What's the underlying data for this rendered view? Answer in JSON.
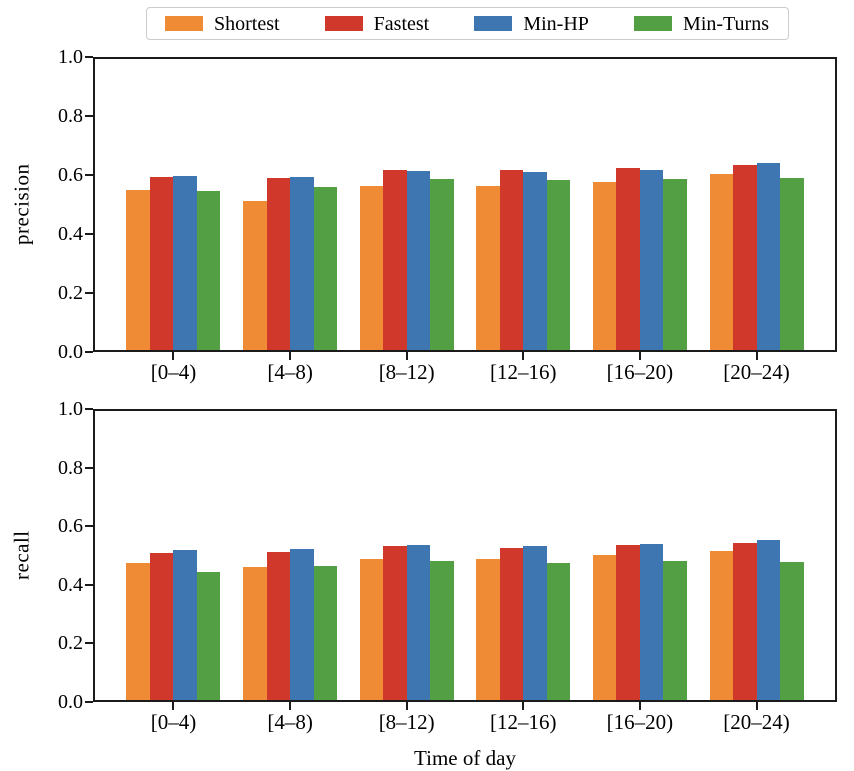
{
  "figure": {
    "xlabel": "Time of day",
    "background": "#ffffff",
    "spine_color": "#1b1b1b",
    "text_color": "#000000",
    "legend_border_color": "#cccccc"
  },
  "chart_data": [
    {
      "type": "bar",
      "title": "",
      "ylabel": "precision",
      "xlabel": "",
      "grid": false,
      "legend_position": "above top panel, centered, horizontal",
      "ylim": [
        0.0,
        1.0
      ],
      "yticks": [
        "0.0",
        "0.2",
        "0.4",
        "0.6",
        "0.8",
        "1.0"
      ],
      "categories": [
        "[0–4)",
        "[4–8)",
        "[8–12)",
        "[12–16)",
        "[16–20)",
        "[20–24)"
      ],
      "series": [
        {
          "name": "Shortest",
          "color": "#ef8a35",
          "values": [
            0.545,
            0.51,
            0.56,
            0.56,
            0.575,
            0.6
          ]
        },
        {
          "name": "Fastest",
          "color": "#d1382c",
          "values": [
            0.59,
            0.588,
            0.615,
            0.614,
            0.62,
            0.632
          ]
        },
        {
          "name": "Min-HP",
          "color": "#3d76b1",
          "values": [
            0.593,
            0.592,
            0.61,
            0.609,
            0.615,
            0.637
          ]
        },
        {
          "name": "Min-Turns",
          "color": "#52a043",
          "values": [
            0.542,
            0.556,
            0.585,
            0.58,
            0.582,
            0.586
          ]
        }
      ]
    },
    {
      "type": "bar",
      "title": "",
      "ylabel": "recall",
      "xlabel": "Time of day",
      "grid": false,
      "ylim": [
        0.0,
        1.0
      ],
      "yticks": [
        "0.0",
        "0.2",
        "0.4",
        "0.6",
        "0.8",
        "1.0"
      ],
      "categories": [
        "[0–4)",
        "[4–8)",
        "[8–12)",
        "[12–16)",
        "[16–20)",
        "[20–24)"
      ],
      "series": [
        {
          "name": "Shortest",
          "color": "#ef8a35",
          "values": [
            0.47,
            0.456,
            0.486,
            0.483,
            0.5,
            0.512
          ]
        },
        {
          "name": "Fastest",
          "color": "#d1382c",
          "values": [
            0.504,
            0.51,
            0.529,
            0.524,
            0.532,
            0.538
          ]
        },
        {
          "name": "Min-HP",
          "color": "#3d76b1",
          "values": [
            0.514,
            0.52,
            0.533,
            0.528,
            0.536,
            0.551
          ]
        },
        {
          "name": "Min-Turns",
          "color": "#52a043",
          "values": [
            0.441,
            0.459,
            0.477,
            0.472,
            0.477,
            0.475
          ]
        }
      ]
    }
  ]
}
